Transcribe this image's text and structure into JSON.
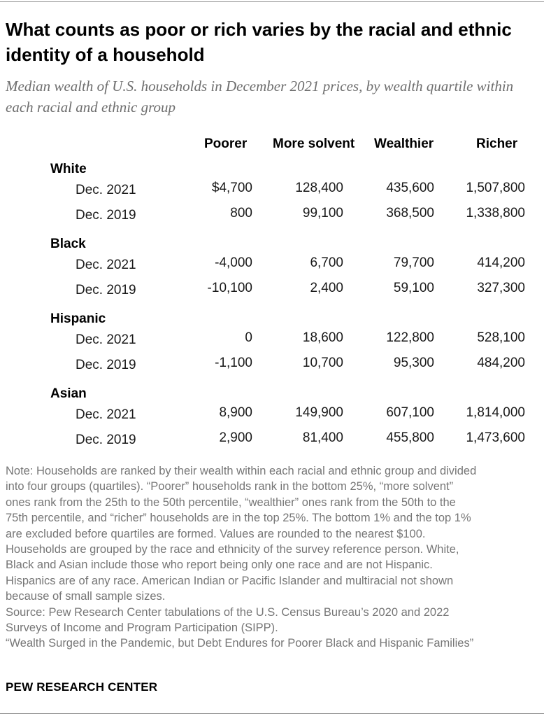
{
  "title": "What counts as poor or rich varies by the racial and ethnic identity of a household",
  "subtitle": "Median wealth of U.S. households in December 2021 prices, by wealth quartile within each racial and ethnic group",
  "chart_data": {
    "type": "table",
    "columns": [
      "Poorer",
      "More solvent",
      "Wealthier",
      "Richer"
    ],
    "groups": [
      {
        "name": "White",
        "rows": [
          {
            "label": "Dec. 2021",
            "cells": [
              "$4,700",
              "128,400",
              "435,600",
              "1,507,800"
            ],
            "values": [
              4700,
              128400,
              435600,
              1507800
            ]
          },
          {
            "label": "Dec. 2019",
            "cells": [
              "800",
              "99,100",
              "368,500",
              "1,338,800"
            ],
            "values": [
              800,
              99100,
              368500,
              1338800
            ]
          }
        ]
      },
      {
        "name": "Black",
        "rows": [
          {
            "label": "Dec. 2021",
            "cells": [
              "-4,000",
              "6,700",
              "79,700",
              "414,200"
            ],
            "values": [
              -4000,
              6700,
              79700,
              414200
            ]
          },
          {
            "label": "Dec. 2019",
            "cells": [
              "-10,100",
              "2,400",
              "59,100",
              "327,300"
            ],
            "values": [
              -10100,
              2400,
              59100,
              327300
            ]
          }
        ]
      },
      {
        "name": "Hispanic",
        "rows": [
          {
            "label": "Dec. 2021",
            "cells": [
              "0",
              "18,600",
              "122,800",
              "528,100"
            ],
            "values": [
              0,
              18600,
              122800,
              528100
            ]
          },
          {
            "label": "Dec. 2019",
            "cells": [
              "-1,100",
              "10,700",
              "95,300",
              "484,200"
            ],
            "values": [
              -1100,
              10700,
              95300,
              484200
            ]
          }
        ]
      },
      {
        "name": "Asian",
        "rows": [
          {
            "label": "Dec. 2021",
            "cells": [
              "8,900",
              "149,900",
              "607,100",
              "1,814,000"
            ],
            "values": [
              8900,
              149900,
              607100,
              1814000
            ]
          },
          {
            "label": "Dec. 2019",
            "cells": [
              "2,900",
              "81,400",
              "455,800",
              "1,473,600"
            ],
            "values": [
              2900,
              81400,
              455800,
              1473600
            ]
          }
        ]
      }
    ]
  },
  "note_lines": [
    "Note: Households are ranked by their wealth within each racial and ethnic group and divided",
    "into four groups (quartiles). “Poorer” households rank in the bottom 25%, “more solvent”",
    "ones rank from the 25th to the 50th percentile, “wealthier” ones rank from the 50th to the",
    "75th percentile, and “richer” households are in the top 25%. The bottom 1% and the top 1%",
    "are excluded before quartiles are formed. Values are rounded to the nearest $100.",
    "Households are grouped by the race and ethnicity of the survey reference person. White,",
    "Black and Asian include those who report being only one race and are not Hispanic.",
    "Hispanics are of any race. American Indian or Pacific Islander and multiracial not shown",
    "because of small sample sizes.",
    "Source: Pew Research Center tabulations of the U.S. Census Bureau’s 2020 and 2022",
    "Surveys of Income and Program Participation (SIPP).",
    "“Wealth Surged in the Pandemic, but Debt Endures for Poorer Black and Hispanic Families”"
  ],
  "footer_logo": "PEW RESEARCH CENTER",
  "colors": {
    "text": "#000000",
    "subtitle": "#6e6e6e",
    "note": "#767676",
    "rule": "#999999"
  }
}
